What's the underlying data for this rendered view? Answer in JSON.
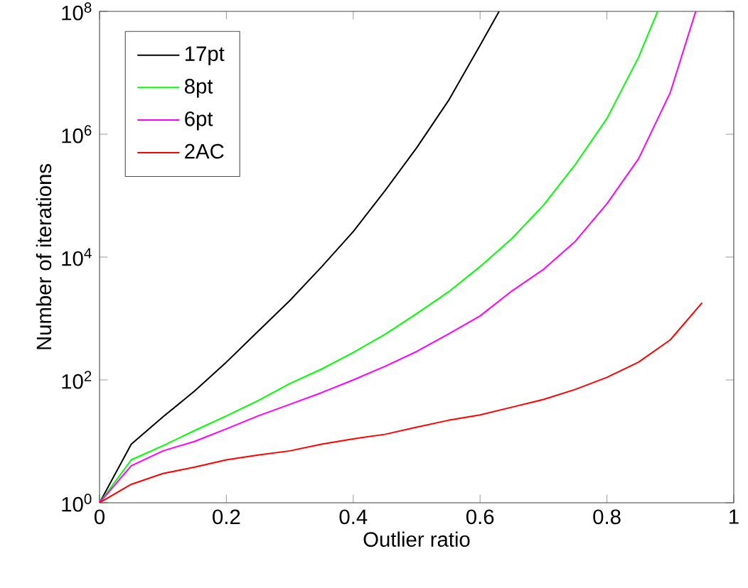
{
  "chart_data": {
    "type": "line",
    "xlabel": "Outlier ratio",
    "ylabel": "Number of iterations",
    "log": "y",
    "legend": "top left",
    "xlim": [
      0,
      1
    ],
    "ylim": [
      1,
      100000000
    ],
    "xticks": [
      0,
      0.2,
      0.4,
      0.6,
      0.8,
      1
    ],
    "yticks": [
      {
        "value": 1,
        "label": "10$^{0}$"
      },
      {
        "value": 100,
        "label": "10$^{2}$"
      },
      {
        "value": 10000,
        "label": "10$^{4}$"
      },
      {
        "value": 1000000,
        "label": "10$^{6}$"
      },
      {
        "value": 100000000,
        "label": "10$^{8}$"
      }
    ],
    "series": [
      {
        "name": "17pt",
        "color": "#000000",
        "x": [
          0,
          0.05,
          0.1,
          0.15,
          0.2,
          0.25,
          0.3,
          0.35,
          0.4,
          0.45,
          0.5,
          0.55,
          0.6,
          0.63
        ],
        "values": [
          1,
          9,
          25,
          66,
          195,
          620,
          1960,
          6900,
          26000,
          120000,
          600000,
          3500000,
          28000000,
          100000000
        ]
      },
      {
        "name": "8pt",
        "color": "#00ff00",
        "x": [
          0,
          0.05,
          0.1,
          0.15,
          0.2,
          0.25,
          0.3,
          0.35,
          0.4,
          0.45,
          0.5,
          0.55,
          0.6,
          0.65,
          0.7,
          0.75,
          0.8,
          0.85,
          0.88
        ],
        "values": [
          1,
          5,
          8.5,
          15,
          26,
          46,
          87,
          150,
          280,
          550,
          1200,
          2700,
          7000,
          20000,
          70000,
          320000,
          1800000,
          18000000,
          100000000
        ]
      },
      {
        "name": "6pt",
        "color": "#ff00ff",
        "x": [
          0,
          0.05,
          0.1,
          0.15,
          0.2,
          0.25,
          0.3,
          0.35,
          0.4,
          0.45,
          0.5,
          0.55,
          0.6,
          0.65,
          0.7,
          0.75,
          0.8,
          0.85,
          0.9,
          0.94
        ],
        "values": [
          1,
          4,
          7,
          10,
          16,
          26,
          40,
          62,
          100,
          166,
          290,
          560,
          1100,
          2800,
          6300,
          18000,
          74000,
          400000,
          4800000,
          100000000
        ]
      },
      {
        "name": "2AC",
        "color": "#ff0000",
        "x": [
          0,
          0.05,
          0.1,
          0.15,
          0.2,
          0.25,
          0.3,
          0.35,
          0.4,
          0.45,
          0.5,
          0.55,
          0.6,
          0.65,
          0.7,
          0.75,
          0.8,
          0.85,
          0.9,
          0.95
        ],
        "values": [
          1,
          2,
          3,
          3.8,
          5,
          6,
          7,
          9,
          11,
          13,
          17,
          22,
          27,
          36,
          48,
          70,
          110,
          195,
          450,
          1800
        ]
      }
    ]
  }
}
